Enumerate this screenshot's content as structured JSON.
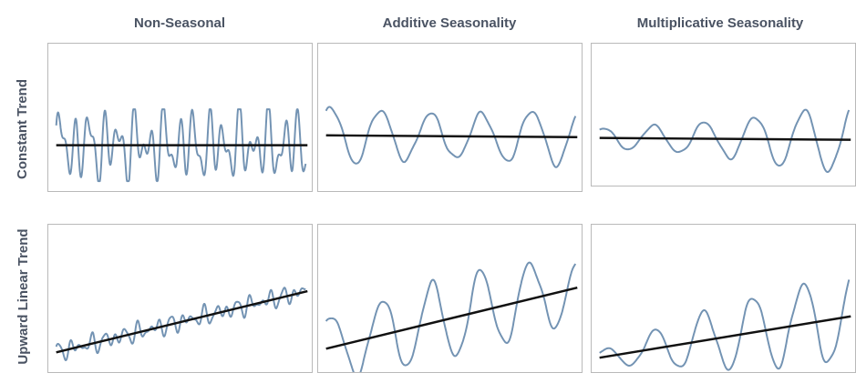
{
  "column_headers": [
    "Non-Seasonal",
    "Additive Seasonality",
    "Multiplicative Seasonality"
  ],
  "row_headers": [
    "Constant Trend",
    "Upward Linear Trend"
  ],
  "colors": {
    "series": "#7393b3",
    "trend": "#111111",
    "header_text": "#4a5363",
    "panel_border": "#b9b9b9"
  },
  "chart_data": [
    {
      "type": "line",
      "title": "",
      "row": "Constant Trend",
      "column": "Non-Seasonal",
      "trend": "constant",
      "seasonality": "none",
      "series": [
        {
          "kind": "observed"
        },
        {
          "kind": "trend-line"
        }
      ],
      "grid": false
    },
    {
      "type": "line",
      "title": "",
      "row": "Constant Trend",
      "column": "Additive Seasonality",
      "trend": "constant",
      "seasonality": "additive",
      "series": [
        {
          "kind": "observed"
        },
        {
          "kind": "trend-line"
        }
      ],
      "grid": false
    },
    {
      "type": "line",
      "title": "",
      "row": "Constant Trend",
      "column": "Multiplicative Seasonality",
      "trend": "constant",
      "seasonality": "multiplicative",
      "series": [
        {
          "kind": "observed"
        },
        {
          "kind": "trend-line"
        }
      ],
      "grid": false
    },
    {
      "type": "line",
      "title": "",
      "row": "Upward Linear Trend",
      "column": "Non-Seasonal",
      "trend": "upward linear",
      "seasonality": "none",
      "series": [
        {
          "kind": "observed"
        },
        {
          "kind": "trend-line"
        }
      ],
      "grid": false
    },
    {
      "type": "line",
      "title": "",
      "row": "Upward Linear Trend",
      "column": "Additive Seasonality",
      "trend": "upward linear",
      "seasonality": "additive",
      "series": [
        {
          "kind": "observed"
        },
        {
          "kind": "trend-line"
        }
      ],
      "grid": false
    },
    {
      "type": "line",
      "title": "",
      "row": "Upward Linear Trend",
      "column": "Multiplicative Seasonality",
      "trend": "upward linear",
      "seasonality": "multiplicative",
      "series": [
        {
          "kind": "observed"
        },
        {
          "kind": "trend-line"
        }
      ],
      "grid": false
    }
  ]
}
